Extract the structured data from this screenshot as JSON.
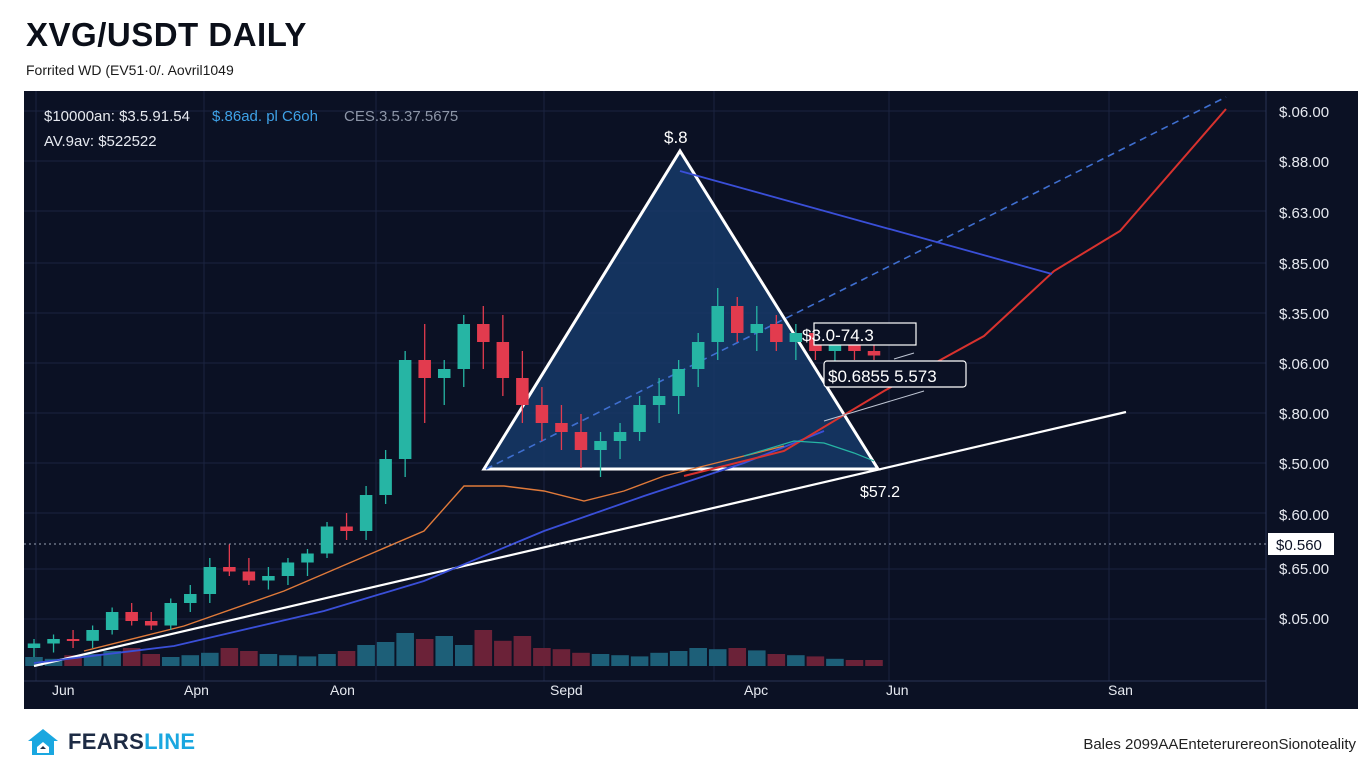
{
  "header": {
    "title": "XVG/USDT DAILY",
    "subtitle": "Forrited WD (EV51·0/. Aovril1049"
  },
  "stats": {
    "line1_a": "$10000an: $3.5.91.54",
    "line1_b": "$.86ad. pl C6oh",
    "line1_c": "CES.3.5.37.5675",
    "line2": "AV.9av: $522522"
  },
  "annotations": {
    "apex_label": "$.8",
    "box1": "$3.0-74.3",
    "box2": "$0.6855 5.573",
    "base_label": "$57.2",
    "current_price": "$0.560"
  },
  "footer": {
    "brand_main": "FEARS",
    "brand_accent": "LINE",
    "note": "Bales 2099AAEnteterurereonSionoteality"
  },
  "colors": {
    "background": "#0b1124",
    "bull": "#26b5a4",
    "bear": "#e23b4e",
    "triangle_fill": "#163a68",
    "trend_red": "#d8322e",
    "trend_blue": "#3a4fd8",
    "support_white": "#ffffff",
    "dashed_blue": "#3f6fd0"
  },
  "chart_data": {
    "type": "candlestick",
    "title": "XVG/USDT DAILY",
    "x_tick_labels": [
      "Jun",
      "Apn",
      "Aon",
      "Sepd",
      "Apc",
      "Jun",
      "San"
    ],
    "y_tick_labels": [
      "$.06.00",
      "$.88.00",
      "$.63.00",
      "$.85.00",
      "$.35.00",
      "$.06.00",
      "$.80.00",
      "$.50.00",
      "$.60.00",
      "$.65.00",
      "$.05.00"
    ],
    "candles_ohlc_relative": [
      [
        0.02,
        0.03,
        0.01,
        0.025
      ],
      [
        0.025,
        0.035,
        0.015,
        0.03
      ],
      [
        0.03,
        0.04,
        0.02,
        0.028
      ],
      [
        0.028,
        0.045,
        0.02,
        0.04
      ],
      [
        0.04,
        0.065,
        0.035,
        0.06
      ],
      [
        0.06,
        0.07,
        0.045,
        0.05
      ],
      [
        0.05,
        0.06,
        0.04,
        0.045
      ],
      [
        0.045,
        0.075,
        0.04,
        0.07
      ],
      [
        0.07,
        0.09,
        0.06,
        0.08
      ],
      [
        0.08,
        0.12,
        0.07,
        0.11
      ],
      [
        0.11,
        0.135,
        0.1,
        0.105
      ],
      [
        0.105,
        0.12,
        0.09,
        0.095
      ],
      [
        0.095,
        0.11,
        0.085,
        0.1
      ],
      [
        0.1,
        0.12,
        0.09,
        0.115
      ],
      [
        0.115,
        0.13,
        0.1,
        0.125
      ],
      [
        0.125,
        0.16,
        0.12,
        0.155
      ],
      [
        0.155,
        0.17,
        0.14,
        0.15
      ],
      [
        0.15,
        0.2,
        0.14,
        0.19
      ],
      [
        0.19,
        0.24,
        0.18,
        0.23
      ],
      [
        0.23,
        0.35,
        0.21,
        0.34
      ],
      [
        0.34,
        0.38,
        0.27,
        0.32
      ],
      [
        0.32,
        0.34,
        0.29,
        0.33
      ],
      [
        0.33,
        0.39,
        0.31,
        0.38
      ],
      [
        0.38,
        0.4,
        0.33,
        0.36
      ],
      [
        0.36,
        0.39,
        0.3,
        0.32
      ],
      [
        0.32,
        0.35,
        0.27,
        0.29
      ],
      [
        0.29,
        0.31,
        0.25,
        0.27
      ],
      [
        0.27,
        0.29,
        0.24,
        0.26
      ],
      [
        0.26,
        0.28,
        0.22,
        0.24
      ],
      [
        0.24,
        0.26,
        0.21,
        0.25
      ],
      [
        0.25,
        0.27,
        0.23,
        0.26
      ],
      [
        0.26,
        0.3,
        0.25,
        0.29
      ],
      [
        0.29,
        0.32,
        0.27,
        0.3
      ],
      [
        0.3,
        0.34,
        0.28,
        0.33
      ],
      [
        0.33,
        0.37,
        0.31,
        0.36
      ],
      [
        0.36,
        0.42,
        0.34,
        0.4
      ],
      [
        0.4,
        0.41,
        0.36,
        0.37
      ],
      [
        0.37,
        0.4,
        0.35,
        0.38
      ],
      [
        0.38,
        0.39,
        0.35,
        0.36
      ],
      [
        0.36,
        0.38,
        0.34,
        0.37
      ],
      [
        0.37,
        0.38,
        0.34,
        0.35
      ],
      [
        0.35,
        0.37,
        0.33,
        0.36
      ],
      [
        0.36,
        0.37,
        0.34,
        0.35
      ],
      [
        0.35,
        0.36,
        0.34,
        0.345
      ]
    ],
    "volume_relative": [
      0.15,
      0.12,
      0.18,
      0.2,
      0.25,
      0.3,
      0.2,
      0.15,
      0.18,
      0.22,
      0.3,
      0.25,
      0.2,
      0.18,
      0.16,
      0.2,
      0.25,
      0.35,
      0.4,
      0.55,
      0.45,
      0.5,
      0.35,
      0.6,
      0.42,
      0.5,
      0.3,
      0.28,
      0.22,
      0.2,
      0.18,
      0.16,
      0.22,
      0.25,
      0.3,
      0.28,
      0.3,
      0.26,
      0.2,
      0.18,
      0.16,
      0.12,
      0.1,
      0.1
    ],
    "legend": "none",
    "grid": true
  }
}
